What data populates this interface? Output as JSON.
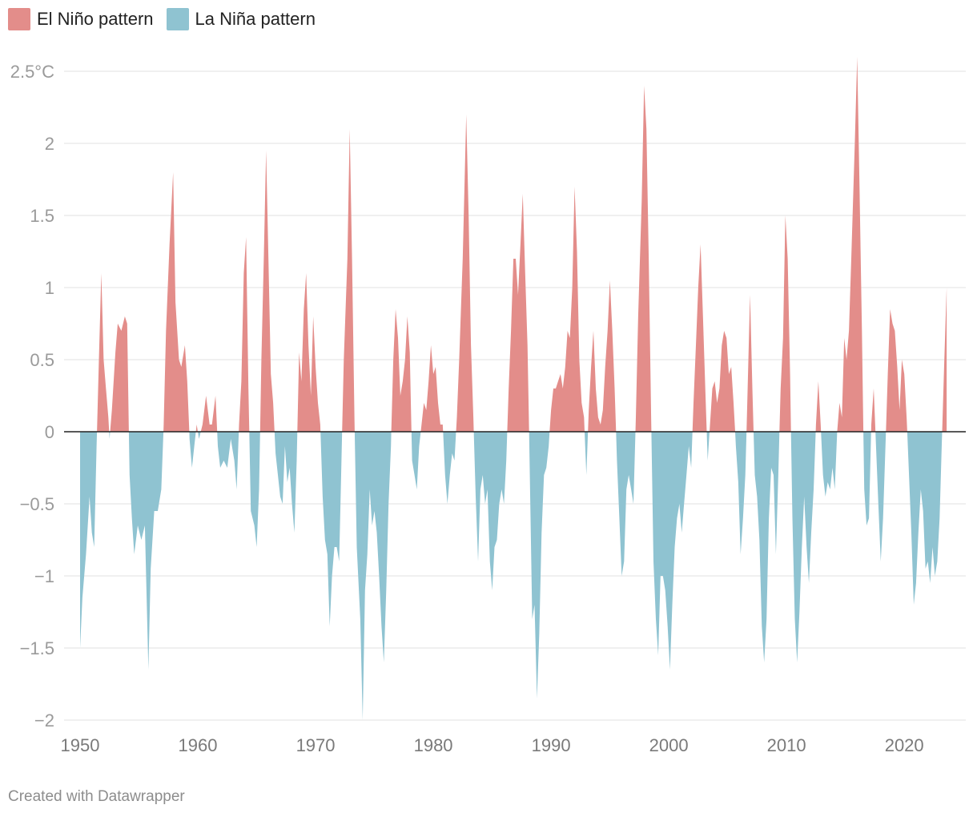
{
  "chart_data": {
    "type": "area",
    "title": "",
    "xlabel": "",
    "ylabel": "",
    "ylim": [
      -2,
      2.5
    ],
    "xlim": [
      1950,
      2024
    ],
    "y_ticks": [
      {
        "value": 2.5,
        "label": "2.5°C"
      },
      {
        "value": 2,
        "label": "2"
      },
      {
        "value": 1.5,
        "label": "1.5"
      },
      {
        "value": 1,
        "label": "1"
      },
      {
        "value": 0.5,
        "label": "0.5"
      },
      {
        "value": 0,
        "label": "0"
      },
      {
        "value": -0.5,
        "label": "−0.5"
      },
      {
        "value": -1,
        "label": "−1"
      },
      {
        "value": -1.5,
        "label": "−1.5"
      },
      {
        "value": -2,
        "label": "−2"
      }
    ],
    "x_ticks": [
      {
        "value": 1950,
        "label": "1950"
      },
      {
        "value": 1960,
        "label": "1960"
      },
      {
        "value": 1970,
        "label": "1970"
      },
      {
        "value": 1980,
        "label": "1980"
      },
      {
        "value": 1990,
        "label": "1990"
      },
      {
        "value": 2000,
        "label": "2000"
      },
      {
        "value": 2010,
        "label": "2010"
      },
      {
        "value": 2020,
        "label": "2020"
      }
    ],
    "series": [
      {
        "name": "El Niño pattern",
        "color": "#e38d8a"
      },
      {
        "name": "La Niña pattern",
        "color": "#8fc3d1"
      }
    ],
    "points": [
      [
        1950.0,
        -1.5
      ],
      [
        1950.2,
        -1.15
      ],
      [
        1950.5,
        -0.85
      ],
      [
        1950.8,
        -0.45
      ],
      [
        1951.0,
        -0.7
      ],
      [
        1951.2,
        -0.8
      ],
      [
        1951.4,
        -0.1
      ],
      [
        1951.6,
        0.5
      ],
      [
        1951.8,
        1.1
      ],
      [
        1952.0,
        0.5
      ],
      [
        1952.2,
        0.3
      ],
      [
        1952.4,
        0.1
      ],
      [
        1952.5,
        -0.05
      ],
      [
        1952.7,
        0.15
      ],
      [
        1953.0,
        0.55
      ],
      [
        1953.2,
        0.75
      ],
      [
        1953.5,
        0.7
      ],
      [
        1953.8,
        0.8
      ],
      [
        1954.0,
        0.75
      ],
      [
        1954.2,
        -0.3
      ],
      [
        1954.4,
        -0.6
      ],
      [
        1954.6,
        -0.85
      ],
      [
        1954.9,
        -0.65
      ],
      [
        1955.2,
        -0.75
      ],
      [
        1955.5,
        -0.65
      ],
      [
        1955.8,
        -1.65
      ],
      [
        1956.0,
        -0.95
      ],
      [
        1956.3,
        -0.55
      ],
      [
        1956.6,
        -0.55
      ],
      [
        1956.9,
        -0.4
      ],
      [
        1957.1,
        0.05
      ],
      [
        1957.3,
        0.7
      ],
      [
        1957.6,
        1.3
      ],
      [
        1957.9,
        1.8
      ],
      [
        1958.1,
        0.9
      ],
      [
        1958.4,
        0.5
      ],
      [
        1958.6,
        0.45
      ],
      [
        1958.9,
        0.6
      ],
      [
        1959.1,
        0.35
      ],
      [
        1959.3,
        -0.05
      ],
      [
        1959.5,
        -0.25
      ],
      [
        1959.7,
        -0.1
      ],
      [
        1959.9,
        0.05
      ],
      [
        1960.1,
        -0.05
      ],
      [
        1960.4,
        0.05
      ],
      [
        1960.7,
        0.25
      ],
      [
        1961.0,
        0.05
      ],
      [
        1961.2,
        0.05
      ],
      [
        1961.5,
        0.25
      ],
      [
        1961.7,
        -0.1
      ],
      [
        1961.9,
        -0.25
      ],
      [
        1962.2,
        -0.2
      ],
      [
        1962.5,
        -0.25
      ],
      [
        1962.8,
        -0.05
      ],
      [
        1963.1,
        -0.2
      ],
      [
        1963.3,
        -0.4
      ],
      [
        1963.5,
        0.05
      ],
      [
        1963.7,
        0.35
      ],
      [
        1963.9,
        1.1
      ],
      [
        1964.1,
        1.35
      ],
      [
        1964.3,
        0.3
      ],
      [
        1964.5,
        -0.55
      ],
      [
        1964.8,
        -0.65
      ],
      [
        1965.0,
        -0.8
      ],
      [
        1965.2,
        -0.4
      ],
      [
        1965.4,
        0.5
      ],
      [
        1965.6,
        1.2
      ],
      [
        1965.8,
        1.95
      ],
      [
        1966.0,
        1.2
      ],
      [
        1966.2,
        0.4
      ],
      [
        1966.4,
        0.2
      ],
      [
        1966.6,
        -0.15
      ],
      [
        1966.8,
        -0.3
      ],
      [
        1967.0,
        -0.45
      ],
      [
        1967.2,
        -0.5
      ],
      [
        1967.4,
        -0.1
      ],
      [
        1967.6,
        -0.35
      ],
      [
        1967.8,
        -0.25
      ],
      [
        1968.0,
        -0.5
      ],
      [
        1968.2,
        -0.7
      ],
      [
        1968.4,
        -0.2
      ],
      [
        1968.6,
        0.55
      ],
      [
        1968.8,
        0.35
      ],
      [
        1969.0,
        0.85
      ],
      [
        1969.2,
        1.1
      ],
      [
        1969.4,
        0.6
      ],
      [
        1969.6,
        0.25
      ],
      [
        1969.8,
        0.8
      ],
      [
        1970.0,
        0.45
      ],
      [
        1970.2,
        0.2
      ],
      [
        1970.4,
        0.05
      ],
      [
        1970.6,
        -0.45
      ],
      [
        1970.8,
        -0.75
      ],
      [
        1971.0,
        -0.85
      ],
      [
        1971.2,
        -1.35
      ],
      [
        1971.4,
        -1.0
      ],
      [
        1971.6,
        -0.8
      ],
      [
        1971.8,
        -0.8
      ],
      [
        1972.0,
        -0.9
      ],
      [
        1972.2,
        -0.2
      ],
      [
        1972.4,
        0.5
      ],
      [
        1972.7,
        1.2
      ],
      [
        1972.9,
        2.1
      ],
      [
        1973.1,
        1.2
      ],
      [
        1973.3,
        0.1
      ],
      [
        1973.5,
        -0.8
      ],
      [
        1973.8,
        -1.3
      ],
      [
        1974.0,
        -2.0
      ],
      [
        1974.2,
        -1.1
      ],
      [
        1974.4,
        -0.85
      ],
      [
        1974.6,
        -0.4
      ],
      [
        1974.8,
        -0.65
      ],
      [
        1975.0,
        -0.55
      ],
      [
        1975.2,
        -0.7
      ],
      [
        1975.4,
        -1.0
      ],
      [
        1975.6,
        -1.35
      ],
      [
        1975.8,
        -1.6
      ],
      [
        1976.0,
        -1.1
      ],
      [
        1976.2,
        -0.5
      ],
      [
        1976.4,
        -0.1
      ],
      [
        1976.6,
        0.5
      ],
      [
        1976.8,
        0.85
      ],
      [
        1977.0,
        0.65
      ],
      [
        1977.2,
        0.25
      ],
      [
        1977.4,
        0.35
      ],
      [
        1977.6,
        0.5
      ],
      [
        1977.8,
        0.8
      ],
      [
        1978.0,
        0.55
      ],
      [
        1978.2,
        -0.2
      ],
      [
        1978.4,
        -0.3
      ],
      [
        1978.6,
        -0.4
      ],
      [
        1978.8,
        -0.1
      ],
      [
        1979.0,
        0.05
      ],
      [
        1979.2,
        0.2
      ],
      [
        1979.4,
        0.15
      ],
      [
        1979.6,
        0.35
      ],
      [
        1979.8,
        0.6
      ],
      [
        1980.0,
        0.4
      ],
      [
        1980.2,
        0.45
      ],
      [
        1980.4,
        0.2
      ],
      [
        1980.6,
        0.05
      ],
      [
        1980.8,
        0.05
      ],
      [
        1981.0,
        -0.3
      ],
      [
        1981.2,
        -0.5
      ],
      [
        1981.4,
        -0.3
      ],
      [
        1981.6,
        -0.15
      ],
      [
        1981.8,
        -0.2
      ],
      [
        1982.0,
        0.1
      ],
      [
        1982.2,
        0.5
      ],
      [
        1982.5,
        1.2
      ],
      [
        1982.8,
        2.2
      ],
      [
        1983.0,
        1.5
      ],
      [
        1983.2,
        0.6
      ],
      [
        1983.4,
        0.1
      ],
      [
        1983.6,
        -0.45
      ],
      [
        1983.8,
        -0.9
      ],
      [
        1984.0,
        -0.4
      ],
      [
        1984.2,
        -0.3
      ],
      [
        1984.4,
        -0.5
      ],
      [
        1984.6,
        -0.4
      ],
      [
        1984.8,
        -0.9
      ],
      [
        1985.0,
        -1.1
      ],
      [
        1985.2,
        -0.8
      ],
      [
        1985.4,
        -0.75
      ],
      [
        1985.6,
        -0.5
      ],
      [
        1985.8,
        -0.4
      ],
      [
        1986.0,
        -0.5
      ],
      [
        1986.2,
        -0.2
      ],
      [
        1986.4,
        0.3
      ],
      [
        1986.6,
        0.7
      ],
      [
        1986.8,
        1.2
      ],
      [
        1987.0,
        1.2
      ],
      [
        1987.2,
        0.95
      ],
      [
        1987.4,
        1.3
      ],
      [
        1987.6,
        1.65
      ],
      [
        1987.8,
        1.1
      ],
      [
        1988.0,
        0.6
      ],
      [
        1988.2,
        -0.3
      ],
      [
        1988.4,
        -1.3
      ],
      [
        1988.6,
        -1.2
      ],
      [
        1988.8,
        -1.85
      ],
      [
        1989.0,
        -1.4
      ],
      [
        1989.2,
        -0.7
      ],
      [
        1989.4,
        -0.3
      ],
      [
        1989.6,
        -0.25
      ],
      [
        1989.8,
        -0.1
      ],
      [
        1990.0,
        0.15
      ],
      [
        1990.2,
        0.3
      ],
      [
        1990.4,
        0.3
      ],
      [
        1990.6,
        0.35
      ],
      [
        1990.8,
        0.4
      ],
      [
        1991.0,
        0.3
      ],
      [
        1991.2,
        0.45
      ],
      [
        1991.4,
        0.7
      ],
      [
        1991.6,
        0.65
      ],
      [
        1991.8,
        1.0
      ],
      [
        1992.0,
        1.7
      ],
      [
        1992.2,
        1.25
      ],
      [
        1992.4,
        0.5
      ],
      [
        1992.6,
        0.2
      ],
      [
        1992.8,
        0.1
      ],
      [
        1993.0,
        -0.3
      ],
      [
        1993.2,
        0.15
      ],
      [
        1993.4,
        0.45
      ],
      [
        1993.6,
        0.7
      ],
      [
        1993.8,
        0.3
      ],
      [
        1994.0,
        0.1
      ],
      [
        1994.2,
        0.05
      ],
      [
        1994.4,
        0.15
      ],
      [
        1994.6,
        0.45
      ],
      [
        1994.8,
        0.7
      ],
      [
        1995.0,
        1.05
      ],
      [
        1995.2,
        0.7
      ],
      [
        1995.4,
        0.3
      ],
      [
        1995.6,
        -0.2
      ],
      [
        1995.8,
        -0.6
      ],
      [
        1996.0,
        -1.0
      ],
      [
        1996.2,
        -0.9
      ],
      [
        1996.4,
        -0.4
      ],
      [
        1996.6,
        -0.3
      ],
      [
        1996.8,
        -0.4
      ],
      [
        1997.0,
        -0.5
      ],
      [
        1997.2,
        0.1
      ],
      [
        1997.4,
        0.8
      ],
      [
        1997.7,
        1.6
      ],
      [
        1997.9,
        2.4
      ],
      [
        1998.1,
        2.1
      ],
      [
        1998.3,
        1.2
      ],
      [
        1998.5,
        0.1
      ],
      [
        1998.7,
        -0.9
      ],
      [
        1998.9,
        -1.3
      ],
      [
        1999.1,
        -1.55
      ],
      [
        1999.3,
        -1.0
      ],
      [
        1999.5,
        -1.0
      ],
      [
        1999.7,
        -1.1
      ],
      [
        1999.9,
        -1.35
      ],
      [
        2000.1,
        -1.65
      ],
      [
        2000.3,
        -1.2
      ],
      [
        2000.5,
        -0.8
      ],
      [
        2000.7,
        -0.6
      ],
      [
        2000.9,
        -0.5
      ],
      [
        2001.1,
        -0.7
      ],
      [
        2001.3,
        -0.5
      ],
      [
        2001.5,
        -0.3
      ],
      [
        2001.7,
        -0.1
      ],
      [
        2001.9,
        -0.25
      ],
      [
        2002.1,
        0.2
      ],
      [
        2002.3,
        0.6
      ],
      [
        2002.5,
        1.0
      ],
      [
        2002.7,
        1.3
      ],
      [
        2002.9,
        0.8
      ],
      [
        2003.1,
        0.3
      ],
      [
        2003.3,
        -0.2
      ],
      [
        2003.5,
        0.05
      ],
      [
        2003.7,
        0.3
      ],
      [
        2003.9,
        0.35
      ],
      [
        2004.1,
        0.2
      ],
      [
        2004.3,
        0.3
      ],
      [
        2004.5,
        0.6
      ],
      [
        2004.7,
        0.7
      ],
      [
        2004.9,
        0.65
      ],
      [
        2005.1,
        0.4
      ],
      [
        2005.3,
        0.45
      ],
      [
        2005.5,
        0.2
      ],
      [
        2005.7,
        -0.1
      ],
      [
        2005.9,
        -0.35
      ],
      [
        2006.1,
        -0.85
      ],
      [
        2006.3,
        -0.6
      ],
      [
        2006.5,
        -0.3
      ],
      [
        2006.7,
        0.3
      ],
      [
        2006.9,
        0.95
      ],
      [
        2007.1,
        0.3
      ],
      [
        2007.3,
        -0.3
      ],
      [
        2007.5,
        -0.45
      ],
      [
        2007.7,
        -0.75
      ],
      [
        2007.9,
        -1.35
      ],
      [
        2008.1,
        -1.6
      ],
      [
        2008.3,
        -1.3
      ],
      [
        2008.5,
        -0.6
      ],
      [
        2008.7,
        -0.25
      ],
      [
        2008.9,
        -0.3
      ],
      [
        2009.1,
        -0.85
      ],
      [
        2009.3,
        -0.3
      ],
      [
        2009.5,
        0.3
      ],
      [
        2009.7,
        0.65
      ],
      [
        2009.9,
        1.5
      ],
      [
        2010.1,
        1.2
      ],
      [
        2010.3,
        0.4
      ],
      [
        2010.5,
        -0.6
      ],
      [
        2010.7,
        -1.3
      ],
      [
        2010.9,
        -1.6
      ],
      [
        2011.1,
        -1.25
      ],
      [
        2011.3,
        -0.8
      ],
      [
        2011.5,
        -0.45
      ],
      [
        2011.7,
        -0.8
      ],
      [
        2011.9,
        -1.05
      ],
      [
        2012.1,
        -0.7
      ],
      [
        2012.3,
        -0.4
      ],
      [
        2012.5,
        0.05
      ],
      [
        2012.7,
        0.35
      ],
      [
        2012.9,
        0.05
      ],
      [
        2013.1,
        -0.3
      ],
      [
        2013.3,
        -0.45
      ],
      [
        2013.5,
        -0.35
      ],
      [
        2013.7,
        -0.4
      ],
      [
        2013.9,
        -0.25
      ],
      [
        2014.1,
        -0.4
      ],
      [
        2014.3,
        0.0
      ],
      [
        2014.5,
        0.2
      ],
      [
        2014.7,
        0.1
      ],
      [
        2014.9,
        0.65
      ],
      [
        2015.1,
        0.5
      ],
      [
        2015.3,
        0.7
      ],
      [
        2015.5,
        1.2
      ],
      [
        2015.8,
        2.0
      ],
      [
        2016.0,
        2.6
      ],
      [
        2016.2,
        1.7
      ],
      [
        2016.4,
        0.7
      ],
      [
        2016.6,
        -0.4
      ],
      [
        2016.8,
        -0.65
      ],
      [
        2017.0,
        -0.6
      ],
      [
        2017.2,
        0.05
      ],
      [
        2017.4,
        0.3
      ],
      [
        2017.6,
        -0.1
      ],
      [
        2017.8,
        -0.5
      ],
      [
        2018.0,
        -0.9
      ],
      [
        2018.2,
        -0.6
      ],
      [
        2018.4,
        -0.1
      ],
      [
        2018.6,
        0.4
      ],
      [
        2018.8,
        0.85
      ],
      [
        2019.0,
        0.75
      ],
      [
        2019.2,
        0.7
      ],
      [
        2019.4,
        0.45
      ],
      [
        2019.6,
        0.15
      ],
      [
        2019.8,
        0.5
      ],
      [
        2020.0,
        0.4
      ],
      [
        2020.2,
        0.1
      ],
      [
        2020.4,
        -0.3
      ],
      [
        2020.6,
        -0.7
      ],
      [
        2020.8,
        -1.2
      ],
      [
        2021.0,
        -1.05
      ],
      [
        2021.2,
        -0.7
      ],
      [
        2021.4,
        -0.4
      ],
      [
        2021.6,
        -0.55
      ],
      [
        2021.8,
        -0.95
      ],
      [
        2022.0,
        -0.9
      ],
      [
        2022.2,
        -1.05
      ],
      [
        2022.4,
        -0.8
      ],
      [
        2022.6,
        -1.0
      ],
      [
        2022.8,
        -0.9
      ],
      [
        2023.0,
        -0.6
      ],
      [
        2023.2,
        -0.05
      ],
      [
        2023.4,
        0.5
      ],
      [
        2023.6,
        1.0
      ]
    ]
  },
  "legend": {
    "el_nino": {
      "label": "El Niño pattern",
      "color": "#e38d8a"
    },
    "la_nina": {
      "label": "La Niña pattern",
      "color": "#8fc3d1"
    }
  },
  "footer": {
    "credit": "Created with Datawrapper"
  }
}
